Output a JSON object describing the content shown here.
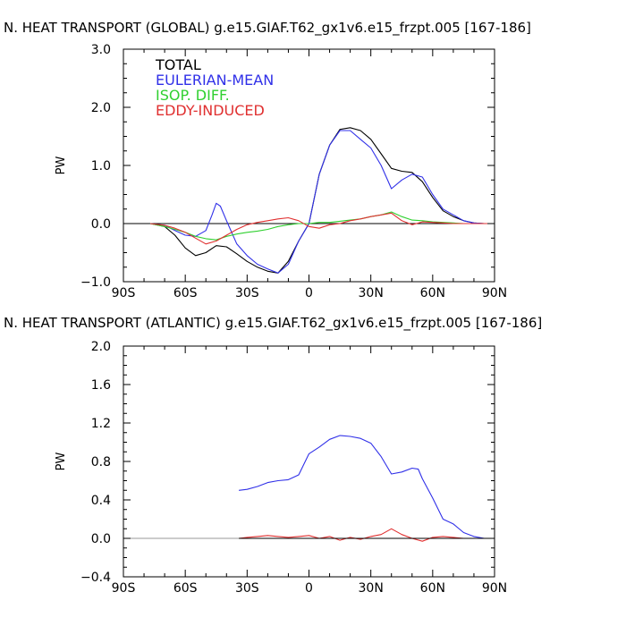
{
  "chart_data": [
    {
      "type": "line",
      "title": "N. HEAT TRANSPORT (GLOBAL) g.e15.GIAF.T62_gx1v6.e15_frzpt.005 [167-186]",
      "ylabel": "PW",
      "xlim": [
        -90,
        90
      ],
      "ylim": [
        -1.0,
        3.0
      ],
      "xticks": [
        -90,
        -60,
        -30,
        0,
        30,
        60,
        90
      ],
      "xtick_labels": [
        "90S",
        "60S",
        "30S",
        "0",
        "30N",
        "60N",
        "90N"
      ],
      "yticks": [
        -1.0,
        0.0,
        1.0,
        2.0,
        3.0
      ],
      "ytick_labels": [
        "−1.0",
        "0.0",
        "1.0",
        "2.0",
        "3.0"
      ],
      "legend_position": "top-left",
      "series": [
        {
          "name": "TOTAL",
          "color": "#000000",
          "x": [
            -77,
            -70,
            -65,
            -60,
            -55,
            -50,
            -45,
            -40,
            -35,
            -30,
            -25,
            -20,
            -15,
            -10,
            -5,
            0,
            5,
            10,
            15,
            20,
            25,
            30,
            35,
            40,
            45,
            50,
            55,
            60,
            65,
            70,
            75,
            80,
            85,
            90
          ],
          "y": [
            0,
            -0.05,
            -0.2,
            -0.42,
            -0.55,
            -0.5,
            -0.38,
            -0.4,
            -0.52,
            -0.65,
            -0.75,
            -0.82,
            -0.85,
            -0.65,
            -0.3,
            0.0,
            0.85,
            1.35,
            1.62,
            1.65,
            1.6,
            1.45,
            1.2,
            0.95,
            0.9,
            0.88,
            0.72,
            0.45,
            0.22,
            0.12,
            0.05,
            0.01,
            0,
            0
          ]
        },
        {
          "name": "EULERIAN-MEAN",
          "color": "#3030e8",
          "x": [
            -77,
            -70,
            -65,
            -60,
            -55,
            -50,
            -47,
            -45,
            -43,
            -40,
            -35,
            -30,
            -25,
            -20,
            -15,
            -10,
            -5,
            0,
            5,
            10,
            15,
            20,
            25,
            30,
            35,
            40,
            45,
            50,
            55,
            60,
            65,
            70,
            75,
            80,
            85,
            90
          ],
          "y": [
            0,
            -0.03,
            -0.12,
            -0.2,
            -0.22,
            -0.12,
            0.15,
            0.35,
            0.3,
            0.05,
            -0.35,
            -0.55,
            -0.7,
            -0.78,
            -0.85,
            -0.7,
            -0.3,
            0.0,
            0.85,
            1.35,
            1.6,
            1.6,
            1.45,
            1.3,
            1.0,
            0.6,
            0.75,
            0.85,
            0.8,
            0.5,
            0.25,
            0.15,
            0.05,
            0.01,
            0,
            0
          ]
        },
        {
          "name": "ISOP. DIFF.",
          "color": "#30d030",
          "x": [
            -77,
            -70,
            -65,
            -60,
            -55,
            -50,
            -45,
            -40,
            -35,
            -30,
            -25,
            -20,
            -15,
            -10,
            -5,
            0,
            5,
            10,
            15,
            20,
            25,
            30,
            35,
            40,
            45,
            50,
            55,
            60,
            65,
            70,
            75,
            80,
            85,
            90
          ],
          "y": [
            0,
            -0.05,
            -0.1,
            -0.15,
            -0.22,
            -0.26,
            -0.28,
            -0.22,
            -0.18,
            -0.15,
            -0.13,
            -0.1,
            -0.05,
            -0.02,
            0.0,
            0.0,
            0.02,
            0.02,
            0.04,
            0.06,
            0.08,
            0.12,
            0.15,
            0.2,
            0.12,
            0.06,
            0.05,
            0.03,
            0.02,
            0.01,
            0,
            0,
            0,
            0
          ]
        },
        {
          "name": "EDDY-INDUCED",
          "color": "#e03030",
          "x": [
            -77,
            -70,
            -65,
            -60,
            -55,
            -50,
            -45,
            -40,
            -35,
            -30,
            -25,
            -20,
            -15,
            -10,
            -5,
            0,
            5,
            10,
            15,
            20,
            25,
            30,
            35,
            40,
            45,
            50,
            55,
            60,
            65,
            70,
            75,
            80,
            85,
            90
          ],
          "y": [
            0,
            -0.03,
            -0.08,
            -0.15,
            -0.25,
            -0.35,
            -0.3,
            -0.2,
            -0.1,
            -0.02,
            0.02,
            0.05,
            0.08,
            0.1,
            0.05,
            -0.05,
            -0.08,
            -0.02,
            0.0,
            0.05,
            0.08,
            0.12,
            0.15,
            0.18,
            0.05,
            -0.02,
            0.03,
            0.02,
            0.01,
            0,
            0,
            0,
            0,
            0
          ]
        }
      ]
    },
    {
      "type": "line",
      "title": "N. HEAT TRANSPORT (ATLANTIC) g.e15.GIAF.T62_gx1v6.e15_frzpt.005 [167-186]",
      "ylabel": "PW",
      "xlim": [
        -90,
        90
      ],
      "ylim": [
        -0.4,
        2.0
      ],
      "xticks": [
        -90,
        -60,
        -30,
        0,
        30,
        60,
        90
      ],
      "xtick_labels": [
        "90S",
        "60S",
        "30S",
        "0",
        "30N",
        "60N",
        "90N"
      ],
      "yticks": [
        -0.4,
        0.0,
        0.4,
        0.8,
        1.2,
        1.6,
        2.0
      ],
      "ytick_labels": [
        "−0.4",
        "0.0",
        "0.4",
        "0.8",
        "1.2",
        "1.6",
        "2.0"
      ],
      "series": [
        {
          "name": "EULERIAN-MEAN",
          "color": "#3030e8",
          "x": [
            -34,
            -30,
            -25,
            -20,
            -15,
            -10,
            -5,
            0,
            5,
            10,
            15,
            20,
            25,
            30,
            35,
            40,
            45,
            50,
            53,
            55,
            60,
            65,
            70,
            75,
            80,
            85,
            90
          ],
          "y": [
            0.5,
            0.51,
            0.54,
            0.58,
            0.6,
            0.61,
            0.66,
            0.88,
            0.95,
            1.03,
            1.07,
            1.06,
            1.04,
            0.99,
            0.85,
            0.67,
            0.69,
            0.73,
            0.72,
            0.62,
            0.42,
            0.2,
            0.15,
            0.06,
            0.02,
            0.0,
            0.0
          ]
        },
        {
          "name": "EDDY-INDUCED",
          "color": "#e03030",
          "x": [
            -34,
            -30,
            -25,
            -20,
            -15,
            -10,
            -5,
            0,
            5,
            10,
            15,
            20,
            25,
            30,
            35,
            40,
            45,
            50,
            55,
            60,
            65,
            70,
            75,
            80,
            85,
            90
          ],
          "y": [
            0,
            0.01,
            0.02,
            0.03,
            0.02,
            0.01,
            0.02,
            0.03,
            0.0,
            0.02,
            -0.02,
            0.01,
            -0.01,
            0.02,
            0.04,
            0.1,
            0.04,
            0.0,
            -0.03,
            0.01,
            0.02,
            0.01,
            0,
            0,
            0,
            0
          ]
        },
        {
          "name": "ISOP. DIFF.",
          "color": "#30d030",
          "x": [
            -34,
            -20,
            0,
            20,
            40,
            60,
            90
          ],
          "y": [
            0,
            0,
            0,
            0,
            0,
            0,
            0
          ]
        },
        {
          "name": "TOTAL",
          "color": "#000000",
          "x": [
            -34,
            -20,
            0,
            20,
            40,
            60,
            90
          ],
          "y": [
            0,
            0,
            0,
            0,
            0,
            0,
            0
          ]
        }
      ]
    }
  ]
}
